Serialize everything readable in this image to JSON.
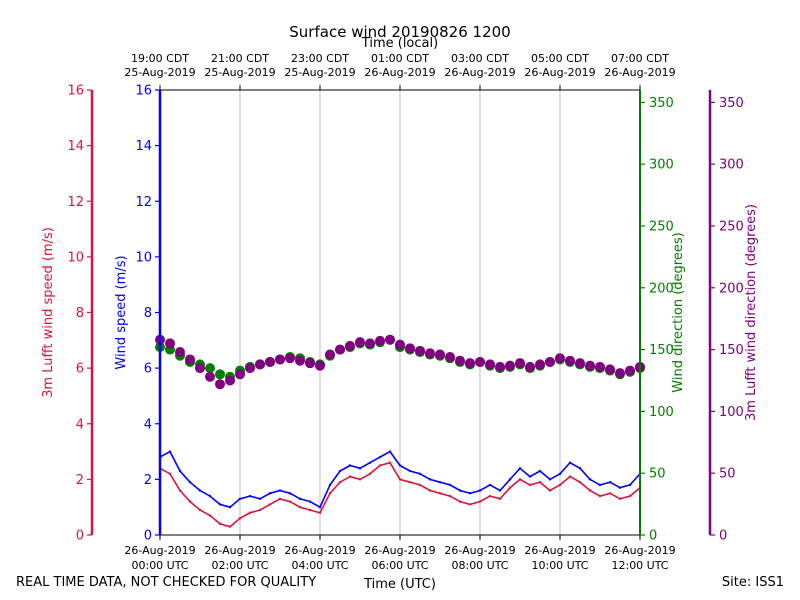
{
  "chart_data": {
    "type": "scatter",
    "title": "Surface wind 20190826 1200",
    "top_axis_label": "Time (local)",
    "xlabel": "Time (UTC)",
    "x_range_hours_utc": [
      0,
      12
    ],
    "bottom_ticks": [
      {
        "hour": 0,
        "date": "26-Aug-2019",
        "time": "00:00 UTC"
      },
      {
        "hour": 2,
        "date": "26-Aug-2019",
        "time": "02:00 UTC"
      },
      {
        "hour": 4,
        "date": "26-Aug-2019",
        "time": "04:00 UTC"
      },
      {
        "hour": 6,
        "date": "26-Aug-2019",
        "time": "06:00 UTC"
      },
      {
        "hour": 8,
        "date": "26-Aug-2019",
        "time": "08:00 UTC"
      },
      {
        "hour": 10,
        "date": "26-Aug-2019",
        "time": "10:00 UTC"
      },
      {
        "hour": 12,
        "date": "26-Aug-2019",
        "time": "12:00 UTC"
      }
    ],
    "top_ticks": [
      {
        "hour": 0,
        "time": "19:00 CDT",
        "date": "25-Aug-2019"
      },
      {
        "hour": 2,
        "time": "21:00 CDT",
        "date": "25-Aug-2019"
      },
      {
        "hour": 4,
        "time": "23:00 CDT",
        "date": "25-Aug-2019"
      },
      {
        "hour": 6,
        "time": "01:00 CDT",
        "date": "26-Aug-2019"
      },
      {
        "hour": 8,
        "time": "03:00 CDT",
        "date": "26-Aug-2019"
      },
      {
        "hour": 10,
        "time": "05:00 CDT",
        "date": "26-Aug-2019"
      },
      {
        "hour": 12,
        "time": "07:00 CDT",
        "date": "26-Aug-2019"
      }
    ],
    "axes": {
      "lufft_speed": {
        "label": "3m Lufft wind speed (m/s)",
        "color": "#dc143c",
        "ylim": [
          0,
          16
        ],
        "ticks": [
          0,
          2,
          4,
          6,
          8,
          10,
          12,
          14,
          16
        ]
      },
      "wind_speed": {
        "label": "Wind speed (m/s)",
        "color": "#0000ff",
        "ylim": [
          0,
          16
        ],
        "ticks": [
          0,
          2,
          4,
          6,
          8,
          10,
          12,
          14,
          16
        ]
      },
      "wind_dir": {
        "label": "Wind direction (degrees)",
        "color": "#008000",
        "ylim": [
          0,
          360
        ],
        "ticks": [
          0,
          50,
          100,
          150,
          200,
          250,
          300,
          350
        ]
      },
      "lufft_dir": {
        "label": "3m Lufft wind direction (degrees)",
        "color": "#800080",
        "ylim": [
          0,
          360
        ],
        "ticks": [
          0,
          50,
          100,
          150,
          200,
          250,
          300,
          350
        ]
      }
    },
    "series": [
      {
        "name": "Wind speed",
        "axis": "wind_speed",
        "kind": "line",
        "x": [
          0,
          0.25,
          0.5,
          0.75,
          1,
          1.25,
          1.5,
          1.75,
          2,
          2.25,
          2.5,
          2.75,
          3,
          3.25,
          3.5,
          3.75,
          4,
          4.25,
          4.5,
          4.75,
          5,
          5.25,
          5.5,
          5.75,
          6,
          6.25,
          6.5,
          6.75,
          7,
          7.25,
          7.5,
          7.75,
          8,
          8.25,
          8.5,
          8.75,
          9,
          9.25,
          9.5,
          9.75,
          10,
          10.25,
          10.5,
          10.75,
          11,
          11.25,
          11.5,
          11.75,
          12
        ],
        "values": [
          2.8,
          3.0,
          2.3,
          1.9,
          1.6,
          1.4,
          1.1,
          1.0,
          1.3,
          1.4,
          1.3,
          1.5,
          1.6,
          1.5,
          1.3,
          1.2,
          1.0,
          1.8,
          2.3,
          2.5,
          2.4,
          2.6,
          2.8,
          3.0,
          2.5,
          2.3,
          2.2,
          2.0,
          1.9,
          1.8,
          1.6,
          1.5,
          1.6,
          1.8,
          1.6,
          2.0,
          2.4,
          2.1,
          2.3,
          2.0,
          2.2,
          2.6,
          2.4,
          2.0,
          1.8,
          1.9,
          1.7,
          1.8,
          2.2
        ]
      },
      {
        "name": "3m Lufft wind speed",
        "axis": "lufft_speed",
        "kind": "line",
        "x": [
          0,
          0.25,
          0.5,
          0.75,
          1,
          1.25,
          1.5,
          1.75,
          2,
          2.25,
          2.5,
          2.75,
          3,
          3.25,
          3.5,
          3.75,
          4,
          4.25,
          4.5,
          4.75,
          5,
          5.25,
          5.5,
          5.75,
          6,
          6.25,
          6.5,
          6.75,
          7,
          7.25,
          7.5,
          7.75,
          8,
          8.25,
          8.5,
          8.75,
          9,
          9.25,
          9.5,
          9.75,
          10,
          10.25,
          10.5,
          10.75,
          11,
          11.25,
          11.5,
          11.75,
          12
        ],
        "values": [
          2.4,
          2.2,
          1.6,
          1.2,
          0.9,
          0.7,
          0.4,
          0.3,
          0.6,
          0.8,
          0.9,
          1.1,
          1.3,
          1.2,
          1.0,
          0.9,
          0.8,
          1.5,
          1.9,
          2.1,
          2.0,
          2.2,
          2.5,
          2.6,
          2.0,
          1.9,
          1.8,
          1.6,
          1.5,
          1.4,
          1.2,
          1.1,
          1.2,
          1.4,
          1.3,
          1.7,
          2.0,
          1.8,
          1.9,
          1.6,
          1.8,
          2.1,
          1.9,
          1.6,
          1.4,
          1.5,
          1.3,
          1.4,
          1.7
        ]
      },
      {
        "name": "Wind direction",
        "axis": "wind_dir",
        "kind": "scatter",
        "x": [
          0,
          0.25,
          0.5,
          0.75,
          1,
          1.25,
          1.5,
          1.75,
          2,
          2.25,
          2.5,
          2.75,
          3,
          3.25,
          3.5,
          3.75,
          4,
          4.25,
          4.5,
          4.75,
          5,
          5.25,
          5.5,
          5.75,
          6,
          6.25,
          6.5,
          6.75,
          7,
          7.25,
          7.5,
          7.75,
          8,
          8.25,
          8.5,
          8.75,
          9,
          9.25,
          9.5,
          9.75,
          10,
          10.25,
          10.5,
          10.75,
          11,
          11.25,
          11.5,
          11.75,
          12
        ],
        "values": [
          152,
          150,
          145,
          140,
          138,
          135,
          130,
          128,
          133,
          136,
          138,
          140,
          142,
          144,
          143,
          140,
          138,
          145,
          150,
          152,
          155,
          154,
          156,
          158,
          152,
          150,
          148,
          146,
          145,
          143,
          140,
          138,
          140,
          137,
          135,
          136,
          138,
          135,
          137,
          140,
          142,
          140,
          138,
          136,
          135,
          133,
          130,
          132,
          135
        ]
      },
      {
        "name": "3m Lufft wind direction",
        "axis": "lufft_dir",
        "kind": "scatter",
        "x": [
          0,
          0.25,
          0.5,
          0.75,
          1,
          1.25,
          1.5,
          1.75,
          2,
          2.25,
          2.5,
          2.75,
          3,
          3.25,
          3.5,
          3.75,
          4,
          4.25,
          4.5,
          4.75,
          5,
          5.25,
          5.5,
          5.75,
          6,
          6.25,
          6.5,
          6.75,
          7,
          7.25,
          7.5,
          7.75,
          8,
          8.25,
          8.5,
          8.75,
          9,
          9.25,
          9.5,
          9.75,
          10,
          10.25,
          10.5,
          10.75,
          11,
          11.25,
          11.5,
          11.75,
          12
        ],
        "values": [
          158,
          155,
          148,
          142,
          135,
          128,
          122,
          125,
          130,
          135,
          138,
          140,
          142,
          143,
          141,
          139,
          137,
          146,
          150,
          153,
          156,
          155,
          157,
          158,
          154,
          151,
          149,
          147,
          146,
          144,
          141,
          139,
          140,
          138,
          136,
          137,
          139,
          136,
          138,
          140,
          143,
          141,
          139,
          137,
          136,
          134,
          131,
          133,
          136
        ]
      }
    ]
  },
  "footer": {
    "quality_note": "REAL TIME DATA, NOT CHECKED FOR QUALITY",
    "site": "Site: ISS1"
  }
}
